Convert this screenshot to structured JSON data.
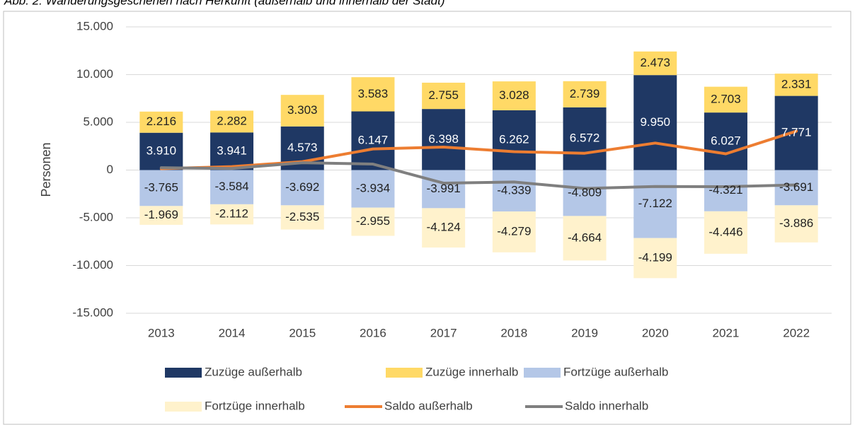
{
  "chart_data": {
    "type": "bar",
    "stacked": true,
    "title": "Abb. 2: Wanderungsgeschehen nach Herkunft (außerhalb und innerhalb der Stadt)",
    "y_label": "Personen",
    "categories": [
      "2013",
      "2014",
      "2015",
      "2016",
      "2017",
      "2018",
      "2019",
      "2020",
      "2021",
      "2022"
    ],
    "series": [
      {
        "name": "Zuzüge außerhalb",
        "type": "bar",
        "color": "#1f3864",
        "label_color": "#ffffff",
        "values": [
          3910,
          3941,
          4573,
          6147,
          6398,
          6262,
          6572,
          9950,
          6027,
          7771
        ],
        "value_labels": [
          "3.910",
          "3.941",
          "4.573",
          "6.147",
          "6.398",
          "6.262",
          "6.572",
          "9.950",
          "6.027",
          "7.771"
        ]
      },
      {
        "name": "Zuzüge innerhalb",
        "type": "bar",
        "color": "#ffd966",
        "label_color": "#222222",
        "values": [
          2216,
          2282,
          3303,
          3583,
          2755,
          3028,
          2739,
          2473,
          2703,
          2331
        ],
        "value_labels": [
          "2.216",
          "2.282",
          "3.303",
          "3.583",
          "2.755",
          "3.028",
          "2.739",
          "2.473",
          "2.703",
          "2.331"
        ]
      },
      {
        "name": "Fortzüge außerhalb",
        "type": "bar",
        "color": "#b4c7e7",
        "label_color": "#222222",
        "values": [
          -3765,
          -3584,
          -3692,
          -3934,
          -3991,
          -4339,
          -4809,
          -7122,
          -4321,
          -3691
        ],
        "value_labels": [
          "-3.765",
          "-3.584",
          "-3.692",
          "-3.934",
          "-3.991",
          "-4.339",
          "-4.809",
          "-7.122",
          "-4.321",
          "-3.691"
        ]
      },
      {
        "name": "Fortzüge innerhalb",
        "type": "bar",
        "color": "#fff2cc",
        "label_color": "#222222",
        "values": [
          -1969,
          -2112,
          -2535,
          -2955,
          -4124,
          -4279,
          -4664,
          -4199,
          -4446,
          -3886
        ],
        "value_labels": [
          "-1.969",
          "-2.112",
          "-2.535",
          "-2.955",
          "-4.124",
          "-4.279",
          "-4.664",
          "-4.199",
          "-4.446",
          "-3.886"
        ]
      },
      {
        "name": "Saldo außerhalb",
        "type": "line",
        "color": "#ed7d31",
        "values": [
          145,
          357,
          881,
          2213,
          2407,
          1923,
          1763,
          2828,
          1706,
          4080
        ]
      },
      {
        "name": "Saldo innerhalb",
        "type": "line",
        "color": "#7f7f7f",
        "values": [
          247,
          170,
          768,
          628,
          -1369,
          -1251,
          -1925,
          -1726,
          -1743,
          -1555
        ]
      }
    ],
    "ylim": [
      -15000,
      15000
    ],
    "yticks": [
      {
        "value": -15000,
        "label": "-15.000"
      },
      {
        "value": -10000,
        "label": "-10.000"
      },
      {
        "value": -5000,
        "label": "-5.000"
      },
      0,
      {
        "value": 5000,
        "label": "5.000"
      },
      {
        "value": 10000,
        "label": "10.000"
      },
      {
        "value": 15000,
        "label": "15.000"
      }
    ],
    "grid": true,
    "legend": "bottom"
  }
}
